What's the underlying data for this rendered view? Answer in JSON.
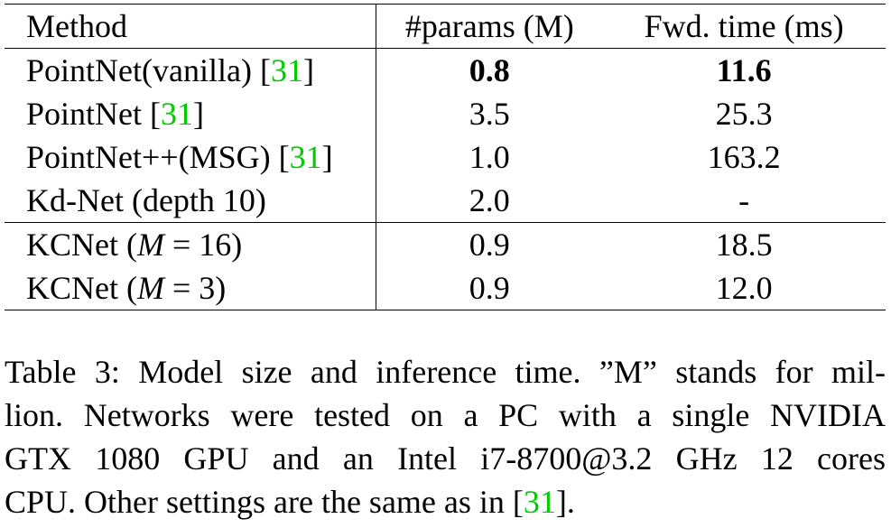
{
  "table": {
    "headers": {
      "method": "Method",
      "params": "#params (M)",
      "time": "Fwd. time (ms)"
    },
    "rows": [
      {
        "method": "PointNet(vanilla) ",
        "cite": "31",
        "params": "0.8",
        "time": "11.6",
        "bold": true
      },
      {
        "method": "PointNet ",
        "cite": "31",
        "params": "3.5",
        "time": "25.3",
        "bold": false
      },
      {
        "method": "PointNet++(MSG) ",
        "cite": "31",
        "params": "1.0",
        "time": "163.2",
        "bold": false
      },
      {
        "method": "Kd-Net (depth 10)",
        "cite": "",
        "params": "2.0",
        "time": "-",
        "bold": false
      },
      {
        "method_prefix": "KCNet (",
        "method_var": "M",
        "method_suffix": " = 16)",
        "params": "0.9",
        "time": "18.5",
        "bold": false
      },
      {
        "method_prefix": "KCNet (",
        "method_var": "M",
        "method_suffix": " = 3)",
        "params": "0.9",
        "time": "12.0",
        "bold": false
      }
    ]
  },
  "caption": {
    "line1": "Table 3: Model size and inference time. ”M” stands for mil-",
    "line2": "lion. Networks were tested on a PC with a single NVIDIA",
    "line3": "GTX 1080 GPU and an Intel i7-8700@3.2 GHz 12 cores",
    "line4_before": "CPU. Other settings are the same as in [",
    "line4_cite": "31",
    "line4_after": "]."
  }
}
